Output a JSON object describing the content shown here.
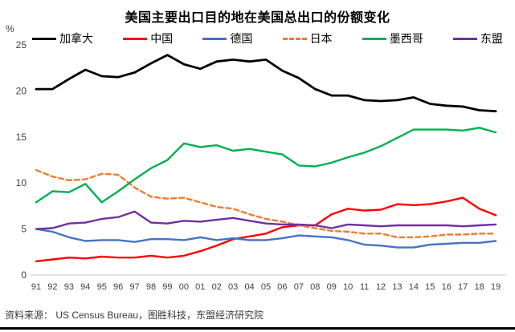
{
  "title": "美国主要出口目的地在美国总出口的份额变化",
  "y_axis_unit": "%",
  "source": "资料来源： US Census Bureau，图胜科技，东盟经济研究院",
  "colors": {
    "axis_line": "#D9D9D9",
    "tick_text": "#404040",
    "source_text": "#3B3838",
    "bottom_rule": "#000000"
  },
  "chart_data": {
    "type": "line",
    "title": "美国主要出口目的地在美国总出口的份额变化",
    "xlabel": "",
    "ylabel": "%",
    "ylim": [
      0,
      25
    ],
    "y_ticks": [
      0,
      5,
      10,
      15,
      20,
      25
    ],
    "grid": false,
    "legend_position": "top",
    "categories": [
      "91",
      "92",
      "93",
      "94",
      "95",
      "96",
      "97",
      "98",
      "99",
      "00",
      "01",
      "02",
      "03",
      "04",
      "05",
      "06",
      "07",
      "08",
      "09",
      "10",
      "11",
      "12",
      "13",
      "14",
      "15",
      "16",
      "17",
      "18",
      "19"
    ],
    "series": [
      {
        "name": "加拿大",
        "key": "canada",
        "color": "#000000",
        "style": "solid",
        "width": 2.8,
        "values": [
          20.2,
          20.2,
          21.3,
          22.3,
          21.6,
          21.5,
          22.0,
          23.0,
          23.9,
          22.9,
          22.4,
          23.2,
          23.4,
          23.2,
          23.4,
          22.2,
          21.4,
          20.2,
          19.5,
          19.5,
          19.0,
          18.9,
          19.0,
          19.3,
          18.6,
          18.4,
          18.3,
          17.9,
          17.8
        ]
      },
      {
        "name": "中国",
        "key": "china",
        "color": "#FF0000",
        "style": "solid",
        "width": 2.4,
        "values": [
          1.5,
          1.7,
          1.9,
          1.8,
          2.0,
          1.9,
          1.9,
          2.1,
          1.9,
          2.1,
          2.6,
          3.2,
          3.9,
          4.2,
          4.5,
          5.2,
          5.4,
          5.4,
          6.6,
          7.2,
          7.0,
          7.1,
          7.7,
          7.6,
          7.7,
          8.0,
          8.4,
          7.2,
          6.5
        ]
      },
      {
        "name": "德国",
        "key": "germany",
        "color": "#4472C4",
        "style": "solid",
        "width": 2.4,
        "values": [
          5.0,
          4.7,
          4.1,
          3.7,
          3.8,
          3.8,
          3.6,
          3.9,
          3.9,
          3.8,
          4.1,
          3.8,
          4.0,
          3.8,
          3.8,
          4.0,
          4.3,
          4.2,
          4.1,
          3.8,
          3.3,
          3.2,
          3.0,
          3.0,
          3.3,
          3.4,
          3.5,
          3.5,
          3.7
        ]
      },
      {
        "name": "日本",
        "key": "japan",
        "color": "#ED7D31",
        "style": "dashed",
        "width": 2.4,
        "values": [
          11.4,
          10.7,
          10.3,
          10.4,
          11.0,
          10.9,
          9.5,
          8.5,
          8.3,
          8.4,
          7.9,
          7.4,
          7.2,
          6.6,
          6.1,
          5.8,
          5.4,
          5.1,
          4.8,
          4.7,
          4.5,
          4.5,
          4.1,
          4.1,
          4.2,
          4.4,
          4.4,
          4.5,
          4.5
        ]
      },
      {
        "name": "墨西哥",
        "key": "mexico",
        "color": "#00B050",
        "style": "solid",
        "width": 2.4,
        "values": [
          7.9,
          9.1,
          9.0,
          9.9,
          7.9,
          9.1,
          10.4,
          11.6,
          12.5,
          14.3,
          13.9,
          14.1,
          13.5,
          13.7,
          13.4,
          13.1,
          11.9,
          11.8,
          12.2,
          12.8,
          13.3,
          14.0,
          14.9,
          15.8,
          15.8,
          15.8,
          15.7,
          16.0,
          15.5
        ]
      },
      {
        "name": "东盟",
        "key": "asean",
        "color": "#7030A0",
        "style": "solid",
        "width": 2.4,
        "values": [
          5.0,
          5.1,
          5.6,
          5.7,
          6.1,
          6.3,
          6.9,
          5.7,
          5.6,
          5.9,
          5.8,
          6.0,
          6.2,
          5.9,
          5.6,
          5.5,
          5.5,
          5.4,
          5.1,
          5.5,
          5.4,
          5.3,
          5.4,
          5.4,
          5.4,
          5.4,
          5.3,
          5.4,
          5.5
        ]
      }
    ]
  }
}
